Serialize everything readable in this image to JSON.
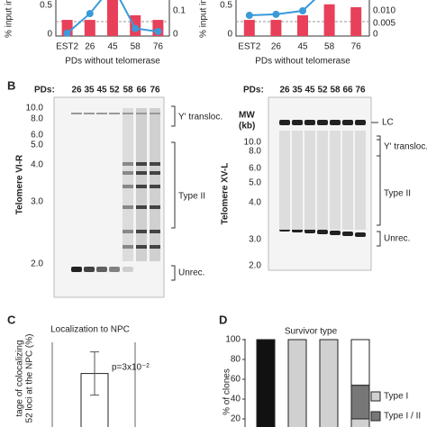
{
  "panel_a": [
    {
      "y_label": "% input in",
      "y_label_right": "% input in",
      "yticks": [
        "0.5",
        "0"
      ],
      "yticks_right": [
        "0.1",
        "0"
      ],
      "categories": [
        "EST2",
        "26",
        "45",
        "58",
        "76"
      ],
      "x_label": "PDs without telomerase",
      "bars": [
        0.28,
        0.28,
        0.7,
        0.36,
        0.28
      ],
      "line": [
        0.011,
        0.089,
        0.2,
        0.03,
        0.018
      ]
    },
    {
      "yticks": [
        "0.5",
        "0"
      ],
      "yticks_right": [
        "0.010",
        "0.005",
        "0"
      ],
      "categories": [
        "EST2",
        "26",
        "45",
        "58",
        "76"
      ],
      "x_label": "PDs without telomerase",
      "bars": [
        0.28,
        0.28,
        0.36,
        0.55,
        0.5
      ],
      "line": [
        0.0082,
        0.0086,
        0.01,
        0.02,
        0.03
      ]
    }
  ],
  "panel_b": {
    "label": "B",
    "left": {
      "pds_label": "PDs:",
      "lanes": [
        "26",
        "35",
        "45",
        "52",
        "58",
        "66",
        "76"
      ],
      "markers": [
        "10.0",
        "8.0",
        "6.0",
        "5.0",
        "4.0",
        "3.0",
        "2.0"
      ],
      "y_label": "Telomere VI-R",
      "brackets": [
        "Y' transloc.",
        "Type II",
        "Unrec."
      ]
    },
    "right": {
      "pds_label": "PDs:",
      "lanes": [
        "26",
        "35",
        "45",
        "52",
        "58",
        "66",
        "76"
      ],
      "mw_label": "MW",
      "mw_unit": "(kb)",
      "markers": [
        "10.0",
        "8.0",
        "6.0",
        "5.0",
        "4.0",
        "3.0",
        "2.0"
      ],
      "y_label": "Telomere XV-L",
      "lc_label": "LC",
      "brackets": [
        "Y' transloc.",
        "Type II",
        "Unrec."
      ]
    }
  },
  "panel_c": {
    "label": "C",
    "title": "Localization to NPC",
    "y_label_1": "tage of colocalizing",
    "y_label_2": "52 loci at the NPC (%)",
    "value": 52,
    "error": 20,
    "p_value": "p=3x10⁻²"
  },
  "panel_d": {
    "label": "D",
    "title": "Survivor type",
    "y_label": "% of clones",
    "yticks": [
      "100",
      "80",
      "60",
      "40",
      "20"
    ],
    "bars": [
      [
        {
          "color": "#111111",
          "value": 100
        }
      ],
      [
        {
          "color": "#d0d0d0",
          "value": 100
        }
      ],
      [
        {
          "color": "#d0d0d0",
          "value": 100
        }
      ],
      [
        {
          "color": "#d0d0d0",
          "value": 20
        },
        {
          "color": "#777777",
          "value": 34
        },
        {
          "color": "#ffffff",
          "value": 46
        }
      ]
    ],
    "legend": [
      {
        "name": "Type I",
        "color": "#d0d0d0"
      },
      {
        "name": "Type I / II",
        "color": "#777777"
      }
    ]
  }
}
